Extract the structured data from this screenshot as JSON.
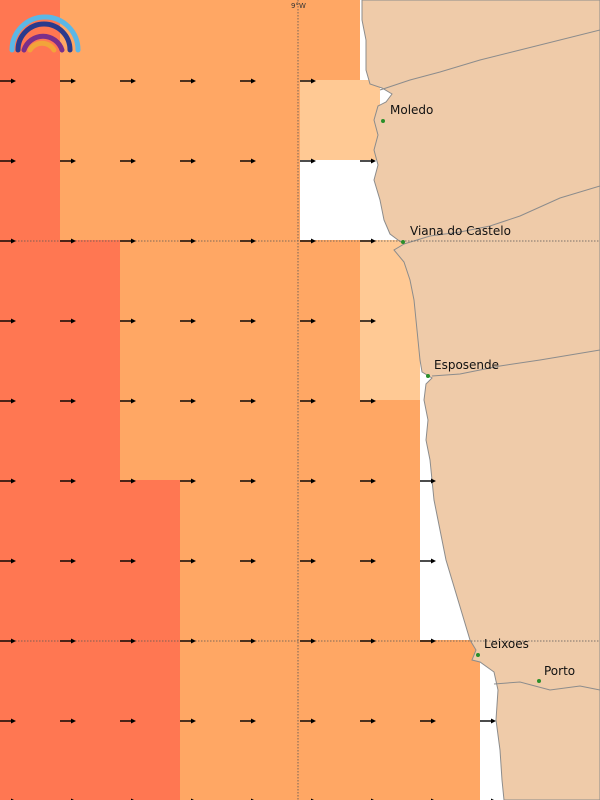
{
  "map": {
    "grid_label_lon": "9°W",
    "colors": {
      "land": "#efcba9",
      "coast_line": "#8c8c8c",
      "sea_white": "#ffffff",
      "level_high": "#ff7752",
      "level_mid": "#ffa764",
      "level_low": "#ffc994",
      "arrow": "#000000",
      "gridline": "#555555",
      "place_marker": "#2a8f2a"
    },
    "places": [
      {
        "name": "Moledo"
      },
      {
        "name": "Viana do Castelo"
      },
      {
        "name": "Esposende"
      },
      {
        "name": "Leixoes"
      },
      {
        "name": "Porto"
      }
    ],
    "wind_direction": "east",
    "logo": {
      "name": "rainbow-logo-icon"
    }
  }
}
